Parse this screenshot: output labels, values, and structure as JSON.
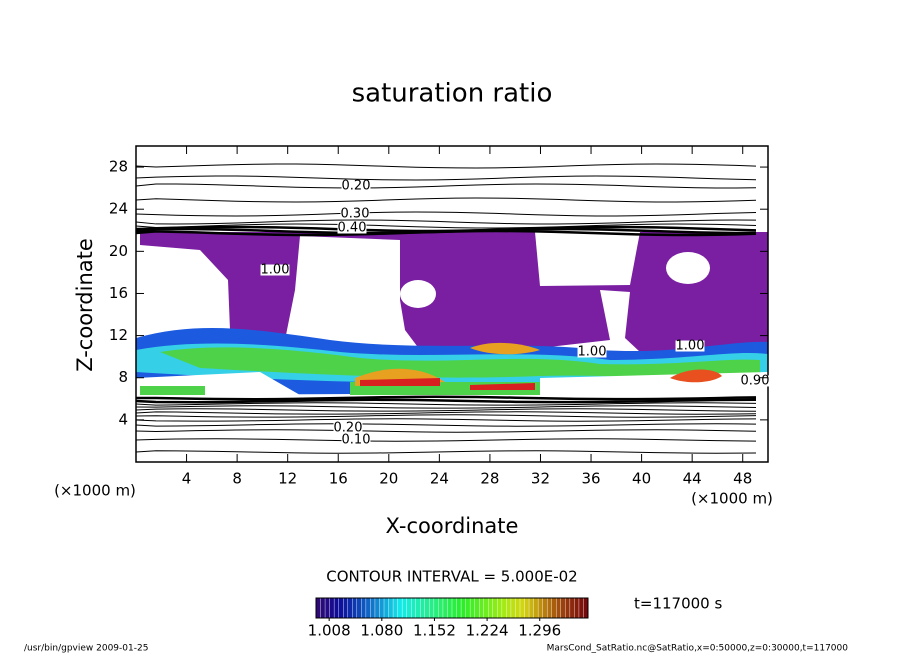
{
  "chart_data": {
    "type": "contour",
    "title": "saturation ratio",
    "xlabel": "X-coordinate",
    "ylabel": "Z-coordinate",
    "xunit": "(×1000 m)",
    "yunit": "(×1000 m)",
    "xlim": [
      0,
      50
    ],
    "ylim": [
      0,
      30
    ],
    "xticks": [
      4,
      8,
      12,
      16,
      20,
      24,
      28,
      32,
      36,
      40,
      44,
      48
    ],
    "yticks": [
      4,
      8,
      12,
      16,
      20,
      24,
      28
    ],
    "contour_labels": [
      "0.20",
      "0.30",
      "0.40",
      "1.00",
      "1.00",
      "1.00",
      "0.90",
      "0.20",
      "0.10"
    ],
    "contour_interval": "CONTOUR INTERVAL = 5.000E-02",
    "colorbar": {
      "lim": [
        0.99,
        1.362
      ],
      "ticks": [
        1.008,
        1.08,
        1.152,
        1.224,
        1.296
      ],
      "tick_labels": [
        "1.008",
        "1.080",
        "1.152",
        "1.224",
        "1.296"
      ]
    },
    "time_label": "t=117000 s",
    "footer_left": "/usr/bin/gpview  2009-01-25",
    "footer_right": "MarsCond_SatRatio.nc@SatRatio,x=0:50000,z=0:30000,t=117000"
  }
}
